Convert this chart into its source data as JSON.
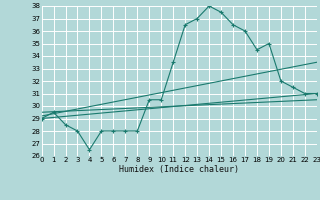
{
  "title": "",
  "xlabel": "Humidex (Indice chaleur)",
  "ylabel": "",
  "background_color": "#b2d8d8",
  "grid_color": "#ffffff",
  "line_color": "#1a7a6e",
  "x_min": 0,
  "x_max": 23,
  "y_min": 26,
  "y_max": 38,
  "yticks": [
    26,
    27,
    28,
    29,
    30,
    31,
    32,
    33,
    34,
    35,
    36,
    37,
    38
  ],
  "xticks": [
    0,
    1,
    2,
    3,
    4,
    5,
    6,
    7,
    8,
    9,
    10,
    11,
    12,
    13,
    14,
    15,
    16,
    17,
    18,
    19,
    20,
    21,
    22,
    23
  ],
  "series": [
    {
      "x": [
        0,
        1,
        2,
        3,
        4,
        5,
        6,
        7,
        8,
        9,
        10,
        11,
        12,
        13,
        14,
        15,
        16,
        17,
        18,
        19,
        20,
        21,
        22,
        23
      ],
      "y": [
        29.0,
        29.5,
        28.5,
        28.0,
        26.5,
        28.0,
        28.0,
        28.0,
        28.0,
        30.5,
        30.5,
        33.5,
        36.5,
        37.0,
        38.0,
        37.5,
        36.5,
        36.0,
        34.5,
        35.0,
        32.0,
        31.5,
        31.0,
        31.0
      ],
      "with_markers": true
    },
    {
      "x": [
        0,
        23
      ],
      "y": [
        29.0,
        31.0
      ],
      "with_markers": false
    },
    {
      "x": [
        0,
        23
      ],
      "y": [
        29.2,
        33.5
      ],
      "with_markers": false
    },
    {
      "x": [
        0,
        23
      ],
      "y": [
        29.5,
        30.5
      ],
      "with_markers": false
    }
  ]
}
